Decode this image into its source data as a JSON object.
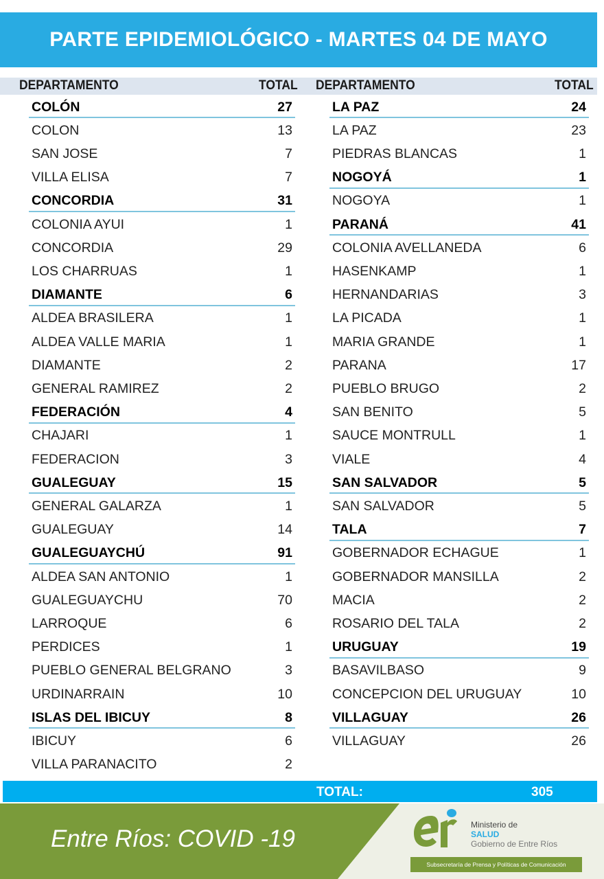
{
  "header": {
    "title": "PARTE EPIDEMIOLÓGICO - MARTES 04 DE MAYO"
  },
  "table_headers": {
    "department": "DEPARTAMENTO",
    "total": "TOTAL"
  },
  "left_column": [
    {
      "name": "COLÓN",
      "total": "27",
      "dept": true
    },
    {
      "name": "COLON",
      "total": "13"
    },
    {
      "name": "SAN JOSE",
      "total": "7"
    },
    {
      "name": "VILLA ELISA",
      "total": "7"
    },
    {
      "name": "CONCORDIA",
      "total": "31",
      "dept": true
    },
    {
      "name": "COLONIA AYUI",
      "total": "1"
    },
    {
      "name": "CONCORDIA",
      "total": "29"
    },
    {
      "name": "LOS CHARRUAS",
      "total": "1"
    },
    {
      "name": "DIAMANTE",
      "total": "6",
      "dept": true
    },
    {
      "name": "ALDEA BRASILERA",
      "total": "1"
    },
    {
      "name": "ALDEA VALLE MARIA",
      "total": "1"
    },
    {
      "name": "DIAMANTE",
      "total": "2"
    },
    {
      "name": "GENERAL RAMIREZ",
      "total": "2"
    },
    {
      "name": "FEDERACIÓN",
      "total": "4",
      "dept": true
    },
    {
      "name": "CHAJARI",
      "total": "1"
    },
    {
      "name": "FEDERACION",
      "total": "3"
    },
    {
      "name": "GUALEGUAY",
      "total": "15",
      "dept": true
    },
    {
      "name": "GENERAL GALARZA",
      "total": "1"
    },
    {
      "name": "GUALEGUAY",
      "total": "14"
    },
    {
      "name": "GUALEGUAYCHÚ",
      "total": "91",
      "dept": true
    },
    {
      "name": "ALDEA SAN ANTONIO",
      "total": "1"
    },
    {
      "name": "GUALEGUAYCHU",
      "total": "70"
    },
    {
      "name": "LARROQUE",
      "total": "6"
    },
    {
      "name": "PERDICES",
      "total": "1"
    },
    {
      "name": "PUEBLO GENERAL BELGRANO",
      "total": "3"
    },
    {
      "name": "URDINARRAIN",
      "total": "10"
    },
    {
      "name": "ISLAS DEL IBICUY",
      "total": "8",
      "dept": true
    },
    {
      "name": "IBICUY",
      "total": "6"
    },
    {
      "name": "VILLA PARANACITO",
      "total": "2"
    }
  ],
  "right_column": [
    {
      "name": "LA PAZ",
      "total": "24",
      "dept": true
    },
    {
      "name": "LA PAZ",
      "total": "23"
    },
    {
      "name": "PIEDRAS BLANCAS",
      "total": "1"
    },
    {
      "name": "NOGOYÁ",
      "total": "1",
      "dept": true
    },
    {
      "name": "NOGOYA",
      "total": "1"
    },
    {
      "name": "PARANÁ",
      "total": "41",
      "dept": true
    },
    {
      "name": "COLONIA AVELLANEDA",
      "total": "6"
    },
    {
      "name": "HASENKAMP",
      "total": "1"
    },
    {
      "name": "HERNANDARIAS",
      "total": "3"
    },
    {
      "name": "LA PICADA",
      "total": "1"
    },
    {
      "name": "MARIA GRANDE",
      "total": "1"
    },
    {
      "name": "PARANA",
      "total": "17"
    },
    {
      "name": "PUEBLO BRUGO",
      "total": "2"
    },
    {
      "name": "SAN BENITO",
      "total": "5"
    },
    {
      "name": "SAUCE MONTRULL",
      "total": "1"
    },
    {
      "name": "VIALE",
      "total": "4"
    },
    {
      "name": "SAN SALVADOR",
      "total": "5",
      "dept": true
    },
    {
      "name": "SAN SALVADOR",
      "total": "5"
    },
    {
      "name": "TALA",
      "total": "7",
      "dept": true
    },
    {
      "name": "GOBERNADOR ECHAGUE",
      "total": "1"
    },
    {
      "name": "GOBERNADOR MANSILLA",
      "total": "2"
    },
    {
      "name": "MACIA",
      "total": "2"
    },
    {
      "name": "ROSARIO DEL TALA",
      "total": "2"
    },
    {
      "name": "URUGUAY",
      "total": "19",
      "dept": true
    },
    {
      "name": "BASAVILBASO",
      "total": "9"
    },
    {
      "name": "CONCEPCION DEL URUGUAY",
      "total": "10"
    },
    {
      "name": "VILLAGUAY",
      "total": "26",
      "dept": true
    },
    {
      "name": "VILLAGUAY",
      "total": "26"
    }
  ],
  "total": {
    "label": "TOTAL:",
    "value": "305"
  },
  "footer": {
    "slogan": "Entre Ríos: COVID -19",
    "logo_text": "er",
    "ministry_line1": "Ministerio de",
    "ministry_line2": "SALUD",
    "ministry_line3": "Gobierno de Entre Ríos",
    "subsecretaria": "Subsecretaría de Prensa y Políticas de Comunicación"
  },
  "colors": {
    "banner": "#29abe2",
    "total_bar": "#00aeef",
    "footer_green": "#7a9b3a",
    "divider": "#7fc4de"
  }
}
